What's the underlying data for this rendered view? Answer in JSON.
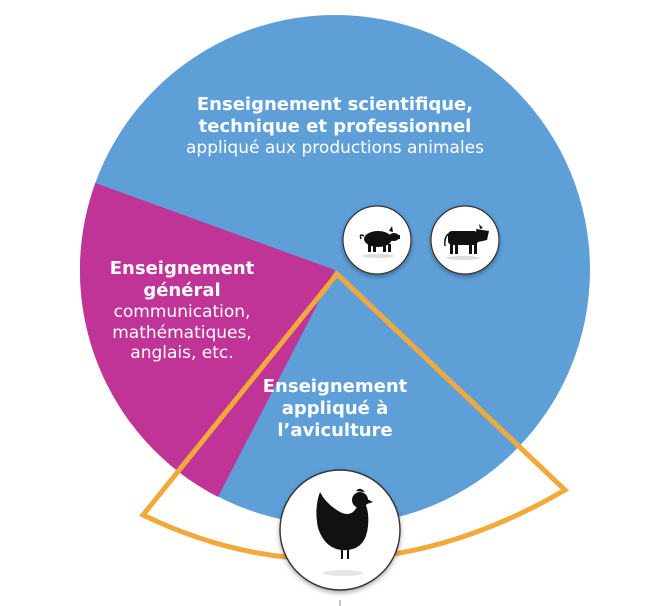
{
  "segments": {
    "scientific": {
      "title_line1": "Enseignement scientifique,",
      "title_line2": "technique et professionnel",
      "subtitle": "appliqué aux  productions animales",
      "color": "#5e9fd8"
    },
    "general": {
      "title_line1": "Enseignement",
      "title_line2": "général",
      "detail_line1": "communication,",
      "detail_line2": "mathématiques,",
      "detail_line3": "anglais, etc.",
      "color": "#c03497"
    },
    "poultry": {
      "title_line1": "Enseignement",
      "title_line2": "appliqué à",
      "title_line3": "l’aviculture",
      "highlight_color": "#f2a93b"
    }
  },
  "icons": [
    "pig-icon",
    "cow-icon",
    "hen-icon"
  ]
}
